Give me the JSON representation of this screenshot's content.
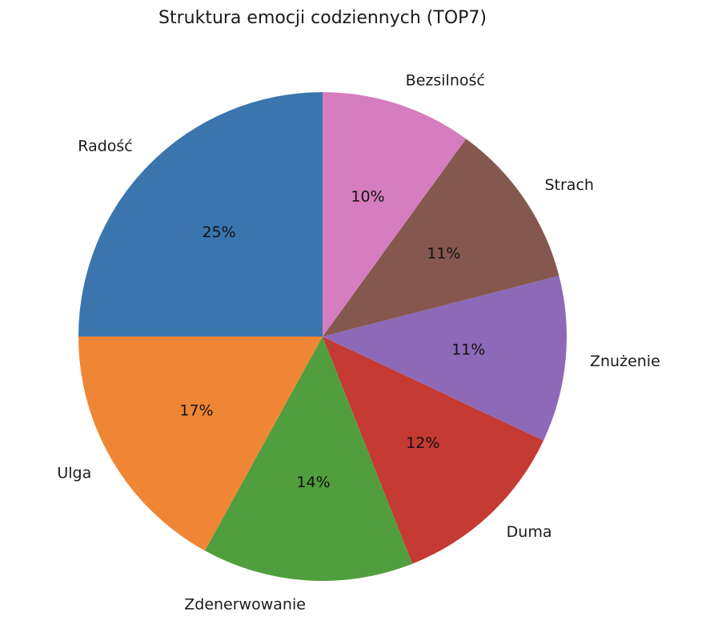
{
  "chart_data": {
    "type": "pie",
    "title": "Struktura emocji codziennych (TOP7)",
    "start_angle_deg": 90,
    "direction": "counterclockwise",
    "slices": [
      {
        "label": "Radość",
        "value": 25,
        "pct_label": "25%",
        "color": "#3a75ae"
      },
      {
        "label": "Ulga",
        "value": 17,
        "pct_label": "17%",
        "color": "#ef8636"
      },
      {
        "label": "Zdenerwowanie",
        "value": 14,
        "pct_label": "14%",
        "color": "#519e3e"
      },
      {
        "label": "Duma",
        "value": 12,
        "pct_label": "12%",
        "color": "#c53a32"
      },
      {
        "label": "Znużenie",
        "value": 11,
        "pct_label": "11%",
        "color": "#8d69b8"
      },
      {
        "label": "Strach",
        "value": 11,
        "pct_label": "11%",
        "color": "#84584e"
      },
      {
        "label": "Bezsilność",
        "value": 10,
        "pct_label": "10%",
        "color": "#d57dbe"
      }
    ]
  }
}
